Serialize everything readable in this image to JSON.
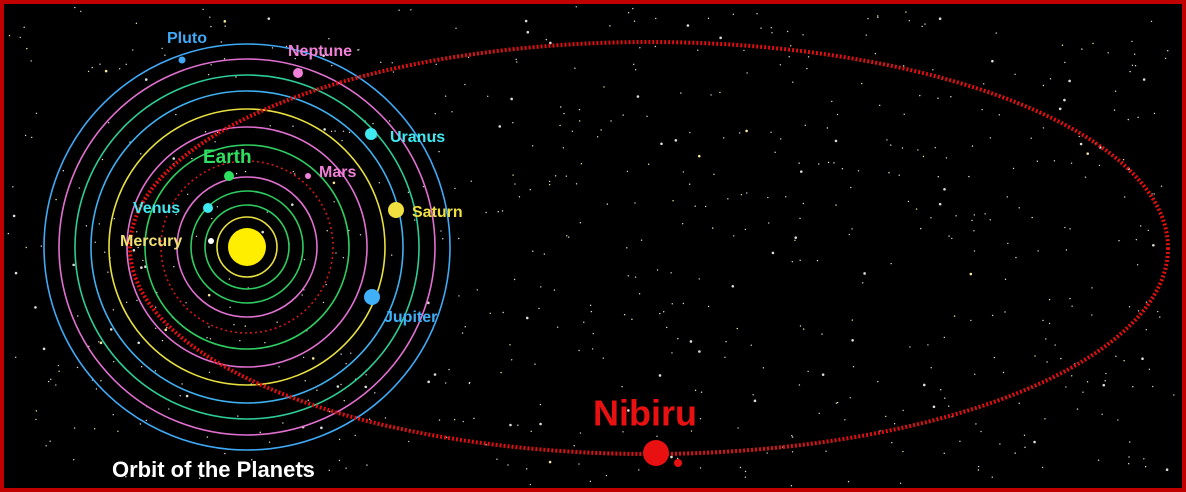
{
  "title": "Orbit of the Planets",
  "planets": [
    {
      "label": "Pluto"
    },
    {
      "label": "Neptune"
    },
    {
      "label": "Uranus"
    },
    {
      "label": "Earth"
    },
    {
      "label": "Mars"
    },
    {
      "label": "Venus"
    },
    {
      "label": "Saturn"
    },
    {
      "label": "Mercury"
    },
    {
      "label": "Jupiter"
    }
  ],
  "nibiru": {
    "label": "Nibiru"
  }
}
